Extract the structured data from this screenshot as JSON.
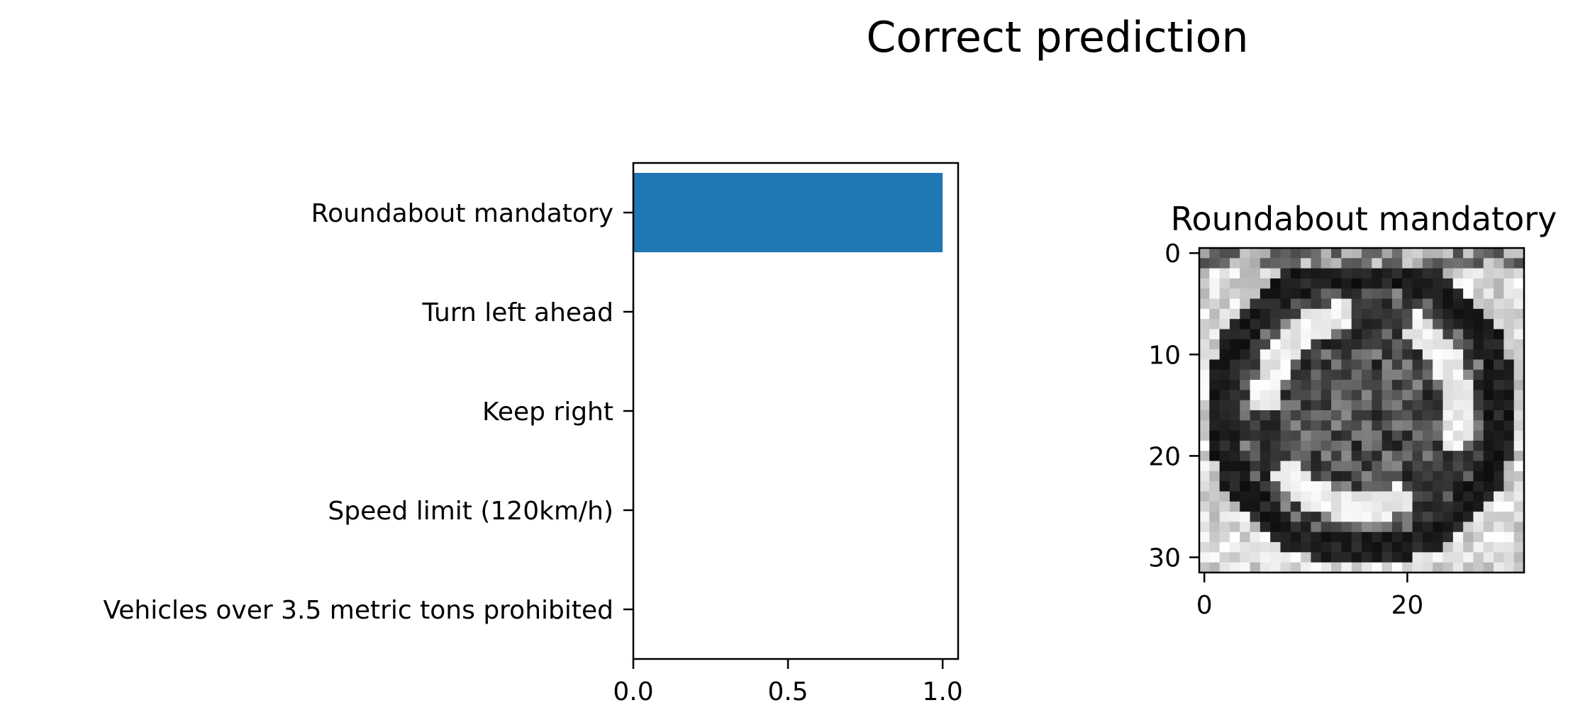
{
  "suptitle": "Correct prediction",
  "chart_data": [
    {
      "type": "bar",
      "orientation": "horizontal",
      "categories": [
        "Roundabout mandatory",
        "Turn left ahead",
        "Keep right",
        "Speed limit (120km/h)",
        "Vehicles over 3.5 metric tons prohibited"
      ],
      "values": [
        1.0,
        0.0,
        0.0,
        0.0,
        0.0
      ],
      "xlim": [
        0,
        1.05
      ],
      "xticks": [
        "0.0",
        "0.5",
        "1.0"
      ],
      "title": "",
      "xlabel": "",
      "ylabel": "",
      "grid": false,
      "colors": {
        "bar": "#1f77b4"
      }
    },
    {
      "type": "heatmap",
      "title": "Roundabout mandatory",
      "colormap": "gray",
      "shape": [
        32,
        32
      ],
      "xticks": [
        "0",
        "20"
      ],
      "yticks": [
        "0",
        "10",
        "20",
        "30"
      ],
      "xlim": [
        -0.5,
        31.5
      ],
      "ylim": [
        31.5,
        -0.5
      ]
    }
  ]
}
